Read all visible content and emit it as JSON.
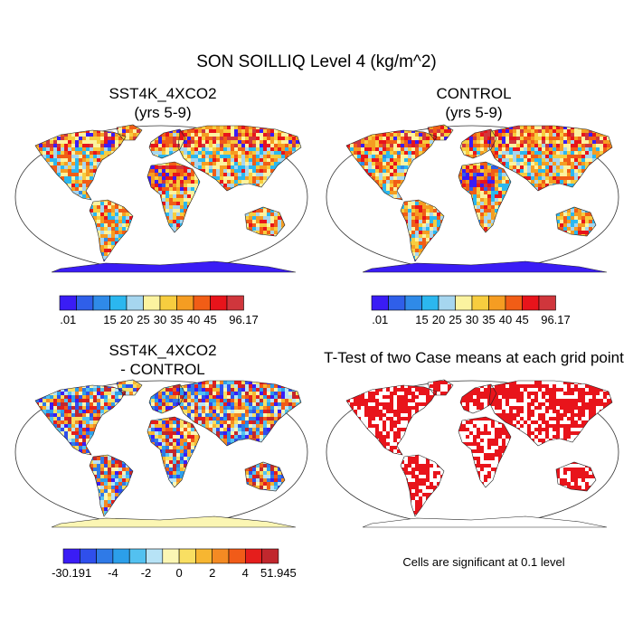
{
  "title": "SON SOILLIQ Level 4 (kg/m^2)",
  "panels": {
    "tl": {
      "line1": "SST4K_4XCO2",
      "line2": "(yrs 5-9)"
    },
    "tr": {
      "line1": "CONTROL",
      "line2": "(yrs 5-9)"
    },
    "bl": {
      "line1": "SST4K_4XCO2",
      "line2": "- CONTROL"
    },
    "br": {
      "line1": "T-Test of two Case means at each grid point"
    }
  },
  "colorbar_abs": {
    "colors": [
      "#3a1cf5",
      "#2f5fe9",
      "#2f8ae8",
      "#2bb7ef",
      "#a6d6ef",
      "#fbf3a0",
      "#f7cd3f",
      "#f59d22",
      "#f15d16",
      "#e8141b",
      "#d0363c"
    ],
    "labels": [
      ".01",
      "15",
      "20",
      "25",
      "30",
      "35",
      "40",
      "45",
      "96.17"
    ]
  },
  "colorbar_diff": {
    "colors": [
      "#3a1cf5",
      "#2f4fec",
      "#2f7ae7",
      "#2c9fea",
      "#53c1f0",
      "#b7e3f6",
      "#fbf6b4",
      "#f9df62",
      "#f7b631",
      "#f48a23",
      "#f15b18",
      "#e51e1c",
      "#c1272d"
    ],
    "labels": [
      "-30.191",
      "-4",
      "-2",
      "0",
      "2",
      "4",
      "51.945"
    ]
  },
  "significance_note": "Cells are significant at 0.1 level"
}
